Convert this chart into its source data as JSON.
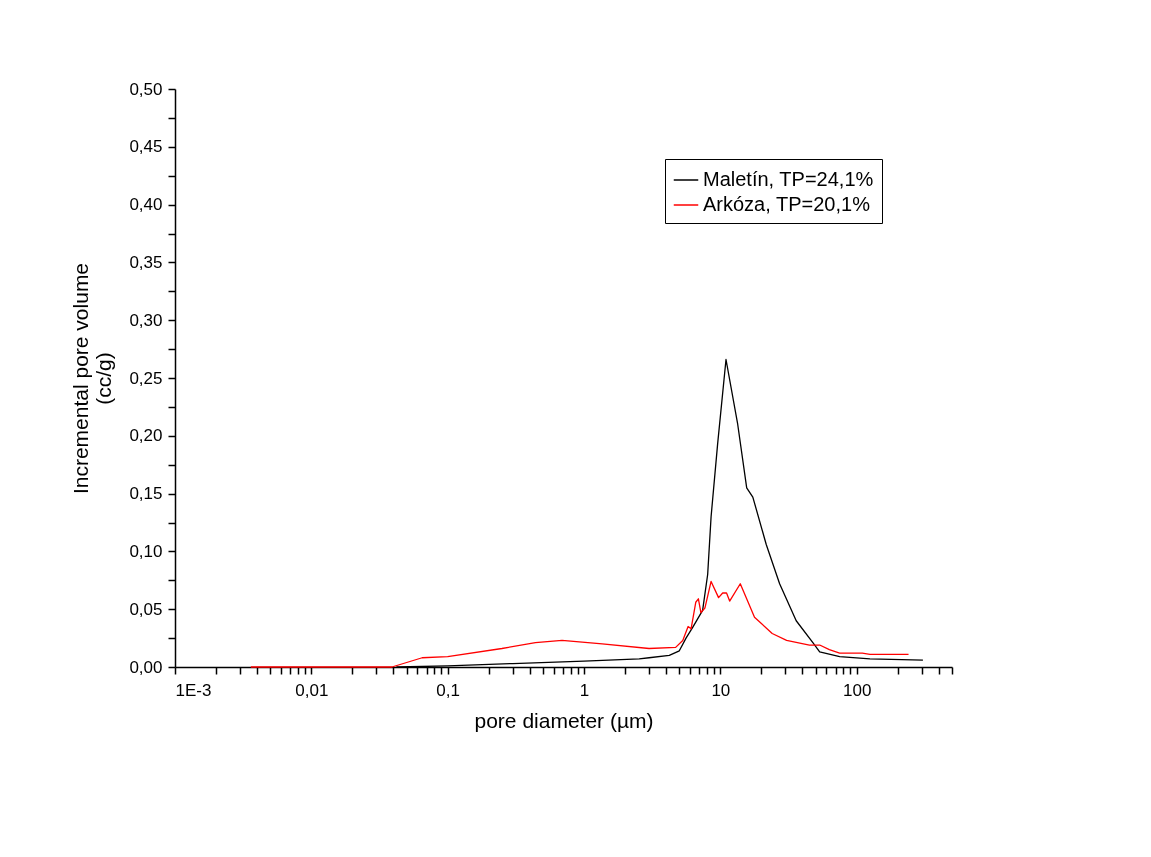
{
  "chart_data": {
    "type": "line",
    "xlabel": "pore diameter (µm)",
    "ylabel": "Incremental pore volume\n(cc/g)",
    "log": "x",
    "grid": false,
    "legend": "top right",
    "marker": "none",
    "line_style": "solid",
    "xlim": [
      0.001,
      500
    ],
    "xticks": [
      {
        "value": 0.001,
        "label": "1E-3"
      },
      {
        "value": 0.002,
        "label": null
      },
      {
        "value": 0.003,
        "label": null
      },
      {
        "value": 0.004,
        "label": null
      },
      {
        "value": 0.005,
        "label": null
      },
      {
        "value": 0.006,
        "label": null
      },
      {
        "value": 0.007,
        "label": null
      },
      {
        "value": 0.008,
        "label": null
      },
      {
        "value": 0.009,
        "label": null
      },
      {
        "value": 0.01,
        "label": "0,01"
      },
      {
        "value": 0.02,
        "label": null
      },
      {
        "value": 0.03,
        "label": null
      },
      {
        "value": 0.04,
        "label": null
      },
      {
        "value": 0.05,
        "label": null
      },
      {
        "value": 0.06,
        "label": null
      },
      {
        "value": 0.07,
        "label": null
      },
      {
        "value": 0.08,
        "label": null
      },
      {
        "value": 0.09,
        "label": null
      },
      {
        "value": 0.1,
        "label": "0,1"
      },
      {
        "value": 0.2,
        "label": null
      },
      {
        "value": 0.3,
        "label": null
      },
      {
        "value": 0.4,
        "label": null
      },
      {
        "value": 0.5,
        "label": null
      },
      {
        "value": 0.6,
        "label": null
      },
      {
        "value": 0.7,
        "label": null
      },
      {
        "value": 0.8,
        "label": null
      },
      {
        "value": 0.9,
        "label": null
      },
      1,
      {
        "value": 2,
        "label": null
      },
      {
        "value": 3,
        "label": null
      },
      {
        "value": 4,
        "label": null
      },
      {
        "value": 5,
        "label": null
      },
      {
        "value": 6,
        "label": null
      },
      {
        "value": 7,
        "label": null
      },
      {
        "value": 8,
        "label": null
      },
      {
        "value": 9,
        "label": null
      },
      10,
      {
        "value": 20,
        "label": null
      },
      {
        "value": 30,
        "label": null
      },
      {
        "value": 40,
        "label": null
      },
      {
        "value": 50,
        "label": null
      },
      {
        "value": 60,
        "label": null
      },
      {
        "value": 70,
        "label": null
      },
      {
        "value": 80,
        "label": null
      },
      {
        "value": 90,
        "label": null
      },
      100,
      {
        "value": 200,
        "label": null
      },
      {
        "value": 300,
        "label": null
      },
      {
        "value": 400,
        "label": null
      },
      {
        "value": 500,
        "label": null
      }
    ],
    "ylim": [
      0,
      0.5
    ],
    "yticks": [
      {
        "value": 0,
        "label": "0,00"
      },
      {
        "value": 0.025,
        "label": null
      },
      {
        "value": 0.05,
        "label": "0,05"
      },
      {
        "value": 0.075,
        "label": null
      },
      {
        "value": 0.1,
        "label": "0,10"
      },
      {
        "value": 0.125,
        "label": null
      },
      {
        "value": 0.15,
        "label": "0,15"
      },
      {
        "value": 0.175,
        "label": null
      },
      {
        "value": 0.2,
        "label": "0,20"
      },
      {
        "value": 0.225,
        "label": null
      },
      {
        "value": 0.25,
        "label": "0,25"
      },
      {
        "value": 0.275,
        "label": null
      },
      {
        "value": 0.3,
        "label": "0,30"
      },
      {
        "value": 0.325,
        "label": null
      },
      {
        "value": 0.35,
        "label": "0,35"
      },
      {
        "value": 0.375,
        "label": null
      },
      {
        "value": 0.4,
        "label": "0,40"
      },
      {
        "value": 0.425,
        "label": null
      },
      {
        "value": 0.45,
        "label": "0,45"
      },
      {
        "value": 0.475,
        "label": null
      },
      {
        "value": 0.5,
        "label": "0,50"
      }
    ],
    "series": [
      {
        "name": "Maletín, TP=24,1%",
        "color": "#000000",
        "x": [
          0.042,
          0.1,
          0.3,
          1,
          2.54,
          3,
          4.22,
          5.0,
          5.6,
          6.25,
          7.41,
          8.07,
          8.55,
          9.55,
          11.0,
          13.4,
          15.6,
          17.3,
          21.7,
          27.2,
          36,
          47.7,
          53.5,
          75,
          125,
          306
        ],
        "values": [
          0,
          0.001,
          0.003,
          0.005,
          0.007,
          0.008,
          0.01,
          0.014,
          0.025,
          0.034,
          0.049,
          0.08,
          0.13,
          0.193,
          0.266,
          0.21,
          0.155,
          0.147,
          0.106,
          0.072,
          0.04,
          0.021,
          0.013,
          0.009,
          0.007,
          0.006
        ]
      },
      {
        "name": "Arkóza, TP=20,1%",
        "color": "#ff0000",
        "x": [
          0.0036,
          0.039,
          0.065,
          0.1,
          0.25,
          0.44,
          0.69,
          1.36,
          3.0,
          4.7,
          5.3,
          5.8,
          6.1,
          6.6,
          6.9,
          7.2,
          7.7,
          8.55,
          9.7,
          10.4,
          11.1,
          11.7,
          14.0,
          17.8,
          24,
          30.6,
          45,
          53.5,
          63,
          75,
          110,
          125,
          240
        ],
        "values": [
          0,
          0,
          0.008,
          0.009,
          0.016,
          0.021,
          0.023,
          0.02,
          0.016,
          0.017,
          0.023,
          0.035,
          0.033,
          0.056,
          0.059,
          0.047,
          0.051,
          0.074,
          0.06,
          0.064,
          0.064,
          0.057,
          0.072,
          0.043,
          0.029,
          0.023,
          0.019,
          0.019,
          0.015,
          0.012,
          0.012,
          0.011,
          0.011
        ]
      }
    ]
  }
}
